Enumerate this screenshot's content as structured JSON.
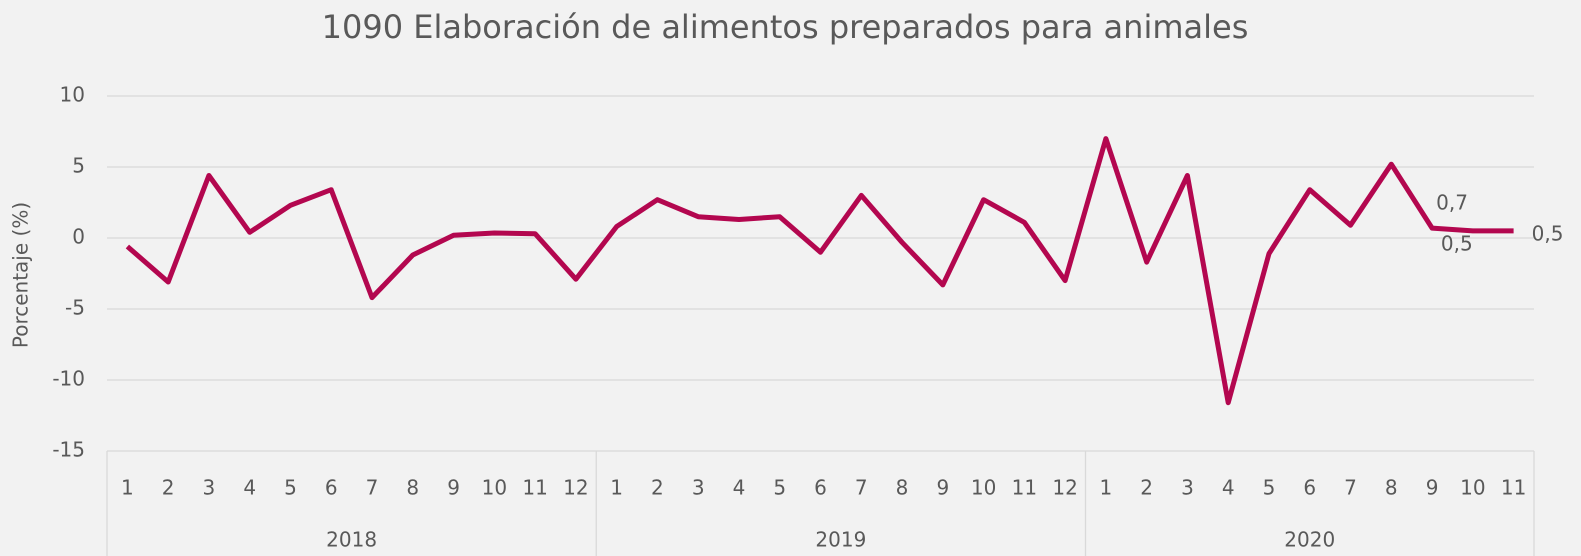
{
  "chart_data": {
    "type": "line",
    "title": "1090 Elaboración de alimentos preparados para animales",
    "y_label": "Porcentaje (%)",
    "groups": [
      {
        "label": "2018",
        "categories": [
          "1",
          "2",
          "3",
          "4",
          "5",
          "6",
          "7",
          "8",
          "9",
          "10",
          "11",
          "12"
        ]
      },
      {
        "label": "2019",
        "categories": [
          "1",
          "2",
          "3",
          "4",
          "5",
          "6",
          "7",
          "8",
          "9",
          "10",
          "11",
          "12"
        ]
      },
      {
        "label": "2020",
        "categories": [
          "1",
          "2",
          "3",
          "4",
          "5",
          "6",
          "7",
          "8",
          "9",
          "10",
          "11"
        ]
      }
    ],
    "series": [
      {
        "color": "#b3074f",
        "values": [
          -0.6,
          -3.1,
          4.4,
          0.4,
          2.3,
          3.4,
          -4.2,
          -1.2,
          0.2,
          0.35,
          0.3,
          -2.9,
          0.8,
          2.7,
          1.5,
          1.3,
          1.5,
          -1.0,
          3.0,
          -0.3,
          -3.3,
          2.7,
          1.1,
          -3.0,
          7.0,
          -1.7,
          4.4,
          -11.6,
          -1.1,
          3.4,
          0.9,
          5.2,
          0.7,
          0.5,
          0.5
        ],
        "value_labels": [
          null,
          null,
          null,
          null,
          null,
          null,
          null,
          null,
          null,
          null,
          null,
          null,
          null,
          null,
          null,
          null,
          null,
          null,
          null,
          null,
          null,
          null,
          null,
          null,
          null,
          null,
          null,
          null,
          null,
          null,
          null,
          null,
          "0,7",
          "0,5",
          "0,5"
        ]
      }
    ],
    "ylim": [
      -15,
      10
    ],
    "yticks": [
      -15,
      -10,
      -5,
      0,
      5,
      10
    ],
    "grid": true
  }
}
